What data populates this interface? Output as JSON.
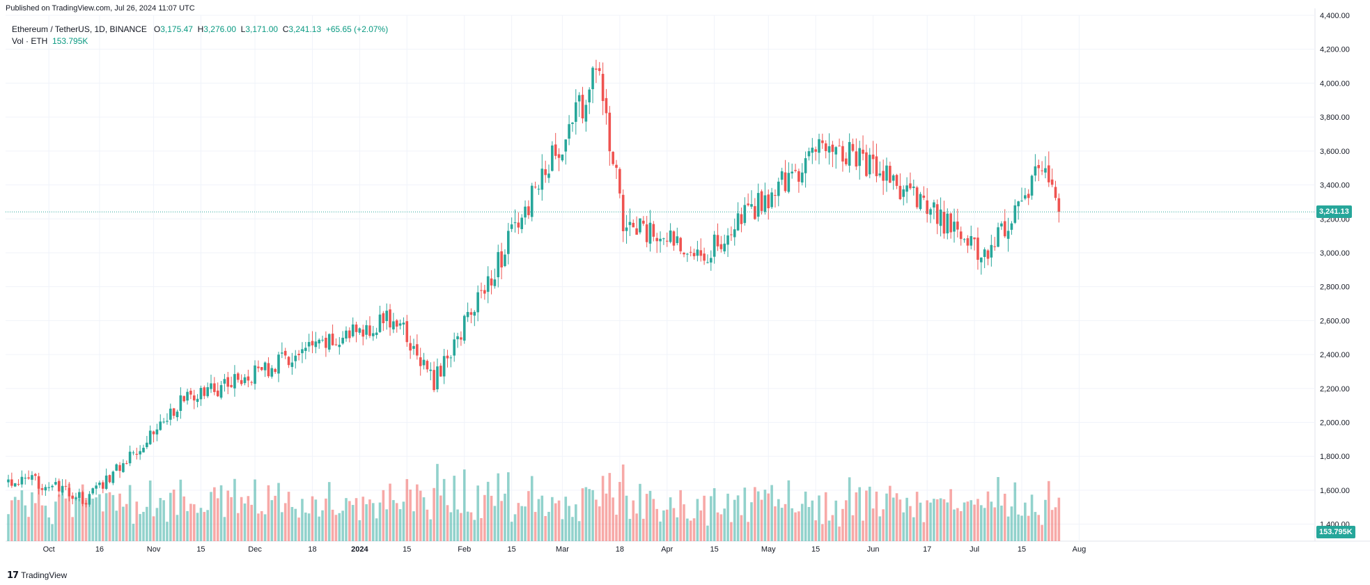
{
  "header": {
    "published": "Published on TradingView.com, Jul 26, 2024 11:07 UTC"
  },
  "legend": {
    "symbol": "Ethereum / TetherUS, 1D, BINANCE",
    "o_label": "O",
    "o_value": "3,175.47",
    "h_label": "H",
    "h_value": "3,276.00",
    "l_label": "L",
    "l_value": "3,171.00",
    "c_label": "C",
    "c_value": "3,241.13",
    "change": "+65.65 (+2.07%)",
    "vol_label": "Vol · ETH",
    "vol_value": "153.795K"
  },
  "footer": {
    "brand": "TradingView"
  },
  "colors": {
    "up": "#26a69a",
    "down": "#ef5350",
    "up_text": "#089981",
    "grid": "#f0f3fa",
    "axis_text": "#131722"
  },
  "chart_data": {
    "type": "candlestick",
    "title": "Ethereum / TetherUS, 1D, BINANCE",
    "price_axis": {
      "ticks": [
        "4,400.00",
        "4,200.00",
        "4,000.00",
        "3,800.00",
        "3,600.00",
        "3,400.00",
        "3,200.00",
        "3,000.00",
        "2,800.00",
        "2,600.00",
        "2,400.00",
        "2,200.00",
        "2,000.00",
        "1,800.00",
        "1,600.00",
        "1,400.00"
      ],
      "range": [
        1300,
        4400
      ]
    },
    "time_axis": {
      "ticks": [
        "Oct",
        "16",
        "Nov",
        "15",
        "Dec",
        "18",
        "2024",
        "15",
        "Feb",
        "15",
        "Mar",
        "18",
        "Apr",
        "15",
        "May",
        "15",
        "Jun",
        "17",
        "Jul",
        "15",
        "Aug"
      ]
    },
    "last_price": "3,241.13",
    "last_volume": "153.795K",
    "key_points": [
      {
        "date": "2023-09-28",
        "close": 1650
      },
      {
        "date": "2023-10-12",
        "close": 1540
      },
      {
        "date": "2023-11-09",
        "close": 2120
      },
      {
        "date": "2024-01-11",
        "close": 2620
      },
      {
        "date": "2024-01-23",
        "close": 2240
      },
      {
        "date": "2024-03-12",
        "close": 4070
      },
      {
        "date": "2024-03-19",
        "close": 3160
      },
      {
        "date": "2024-04-13",
        "close": 3010
      },
      {
        "date": "2024-05-20",
        "close": 3670
      },
      {
        "date": "2024-07-05",
        "close": 2980
      },
      {
        "date": "2024-07-21",
        "close": 3530
      },
      {
        "date": "2024-07-26",
        "close": 3241.13
      }
    ]
  }
}
